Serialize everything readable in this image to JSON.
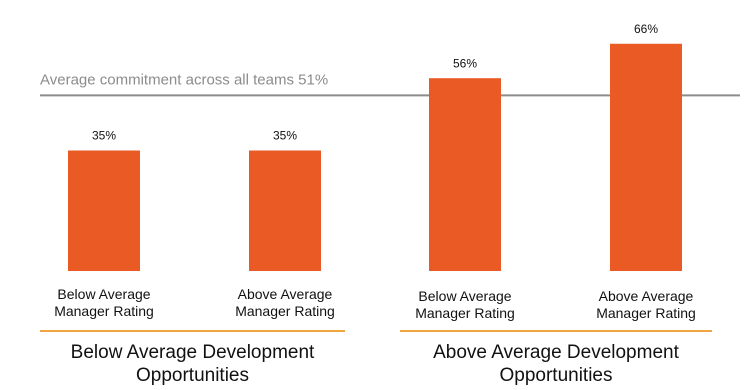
{
  "chart_data": {
    "type": "bar",
    "categories": [
      "Below Average Manager Rating",
      "Above Average Manager Rating",
      "Below Average Manager Rating",
      "Above Average Manager Rating"
    ],
    "values": [
      35,
      35,
      56,
      66
    ],
    "value_labels": [
      "35%",
      "35%",
      "56%",
      "66%"
    ],
    "color": "#ea5a24",
    "ylim": [
      0,
      70
    ],
    "reference_line": {
      "value": 51,
      "label": "Average commitment across all teams 51%",
      "color": "#8c8c8c"
    },
    "groups": [
      "Below Average Development Opportunities",
      "Above Average Development Opportunities"
    ],
    "group_line_color": "#f0a640"
  }
}
